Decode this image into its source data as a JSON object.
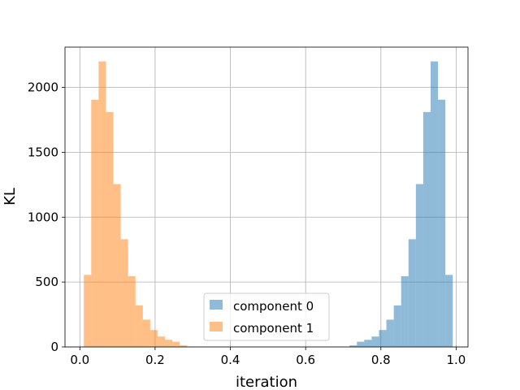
{
  "chart_data": {
    "type": "bar",
    "subtype": "histogram",
    "xlabel": "iteration",
    "ylabel": "KL",
    "xlim": [
      -0.0395,
      1.0315
    ],
    "ylim": [
      0,
      2310
    ],
    "xticks": [
      0.0,
      0.2,
      0.4,
      0.6,
      0.8,
      1.0
    ],
    "xtick_labels": [
      "0.0",
      "0.2",
      "0.4",
      "0.6",
      "0.8",
      "1.0"
    ],
    "yticks": [
      0,
      500,
      1000,
      1500,
      2000
    ],
    "ytick_labels": [
      "0",
      "500",
      "1000",
      "1500",
      "2000"
    ],
    "grid": true,
    "legend_position": "lower-center",
    "bin_width": 0.0196,
    "series": [
      {
        "name": "component 0",
        "color": "#1f77b4",
        "alpha": 0.5,
        "bin_edges": [
          0.7166,
          0.7362,
          0.7558,
          0.7754,
          0.795,
          0.8146,
          0.8342,
          0.8538,
          0.8734,
          0.893,
          0.9126,
          0.9322,
          0.9518,
          0.9714,
          0.991
        ],
        "counts": [
          12,
          40,
          55,
          80,
          130,
          210,
          320,
          545,
          830,
          1255,
          1810,
          2200,
          1905,
          555
        ]
      },
      {
        "name": "component 1",
        "color": "#ff7f0e",
        "alpha": 0.5,
        "bin_edges": [
          0.0106,
          0.0302,
          0.0498,
          0.0694,
          0.089,
          0.1086,
          0.1282,
          0.1478,
          0.1674,
          0.187,
          0.2066,
          0.2262,
          0.2458,
          0.2654,
          0.285
        ],
        "counts": [
          555,
          1905,
          2200,
          1810,
          1255,
          830,
          545,
          320,
          210,
          130,
          80,
          55,
          40,
          12
        ]
      }
    ]
  }
}
